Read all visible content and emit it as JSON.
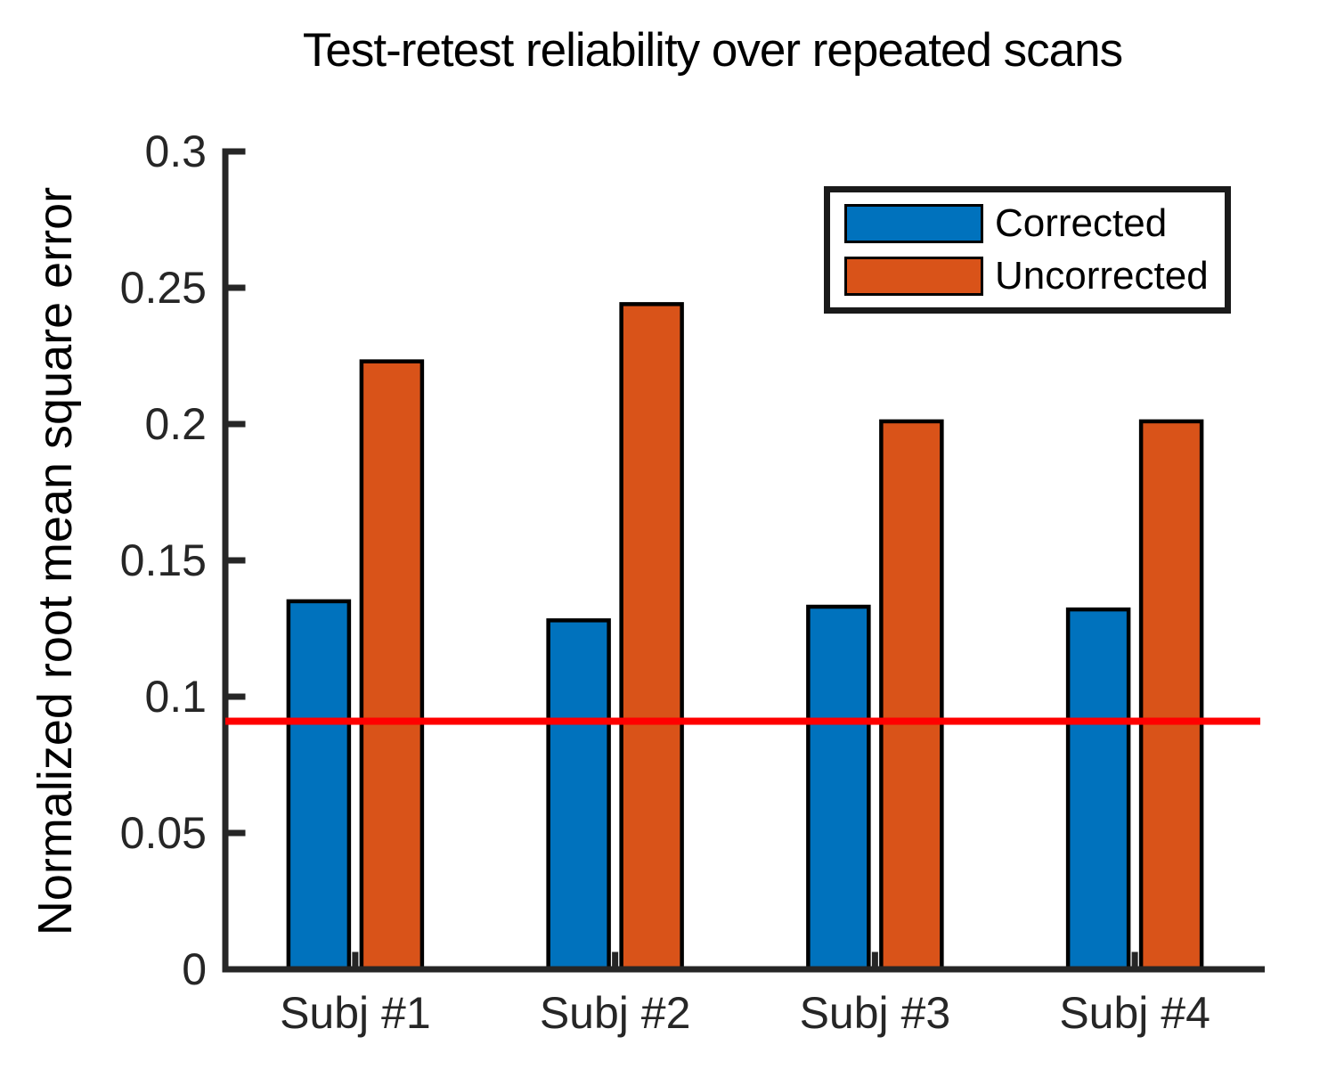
{
  "title": "Test-retest reliability over repeated scans",
  "chart_data": {
    "type": "bar",
    "title": "Test-retest reliability over repeated scans",
    "xlabel": "",
    "ylabel": "Normalized root mean square error",
    "categories": [
      "Subj #1",
      "Subj #2",
      "Subj #3",
      "Subj #4"
    ],
    "series": [
      {
        "name": "Corrected",
        "color": "#0072BD",
        "values": [
          0.135,
          0.128,
          0.133,
          0.132
        ]
      },
      {
        "name": "Uncorrected",
        "color": "#D95319",
        "values": [
          0.223,
          0.244,
          0.201,
          0.201
        ]
      }
    ],
    "reference_line": {
      "value": 0.091,
      "color": "#FF0000"
    },
    "ylim": [
      0,
      0.3
    ],
    "yticks": [
      0,
      0.05,
      0.1,
      0.15,
      0.2,
      0.25,
      0.3
    ],
    "ytick_labels": [
      "0",
      "0.05",
      "0.1",
      "0.15",
      "0.2",
      "0.25",
      "0.3"
    ],
    "legend_position": "top-right",
    "grid": false,
    "axis_color": "#262626",
    "bar_edge_color": "#000000"
  }
}
